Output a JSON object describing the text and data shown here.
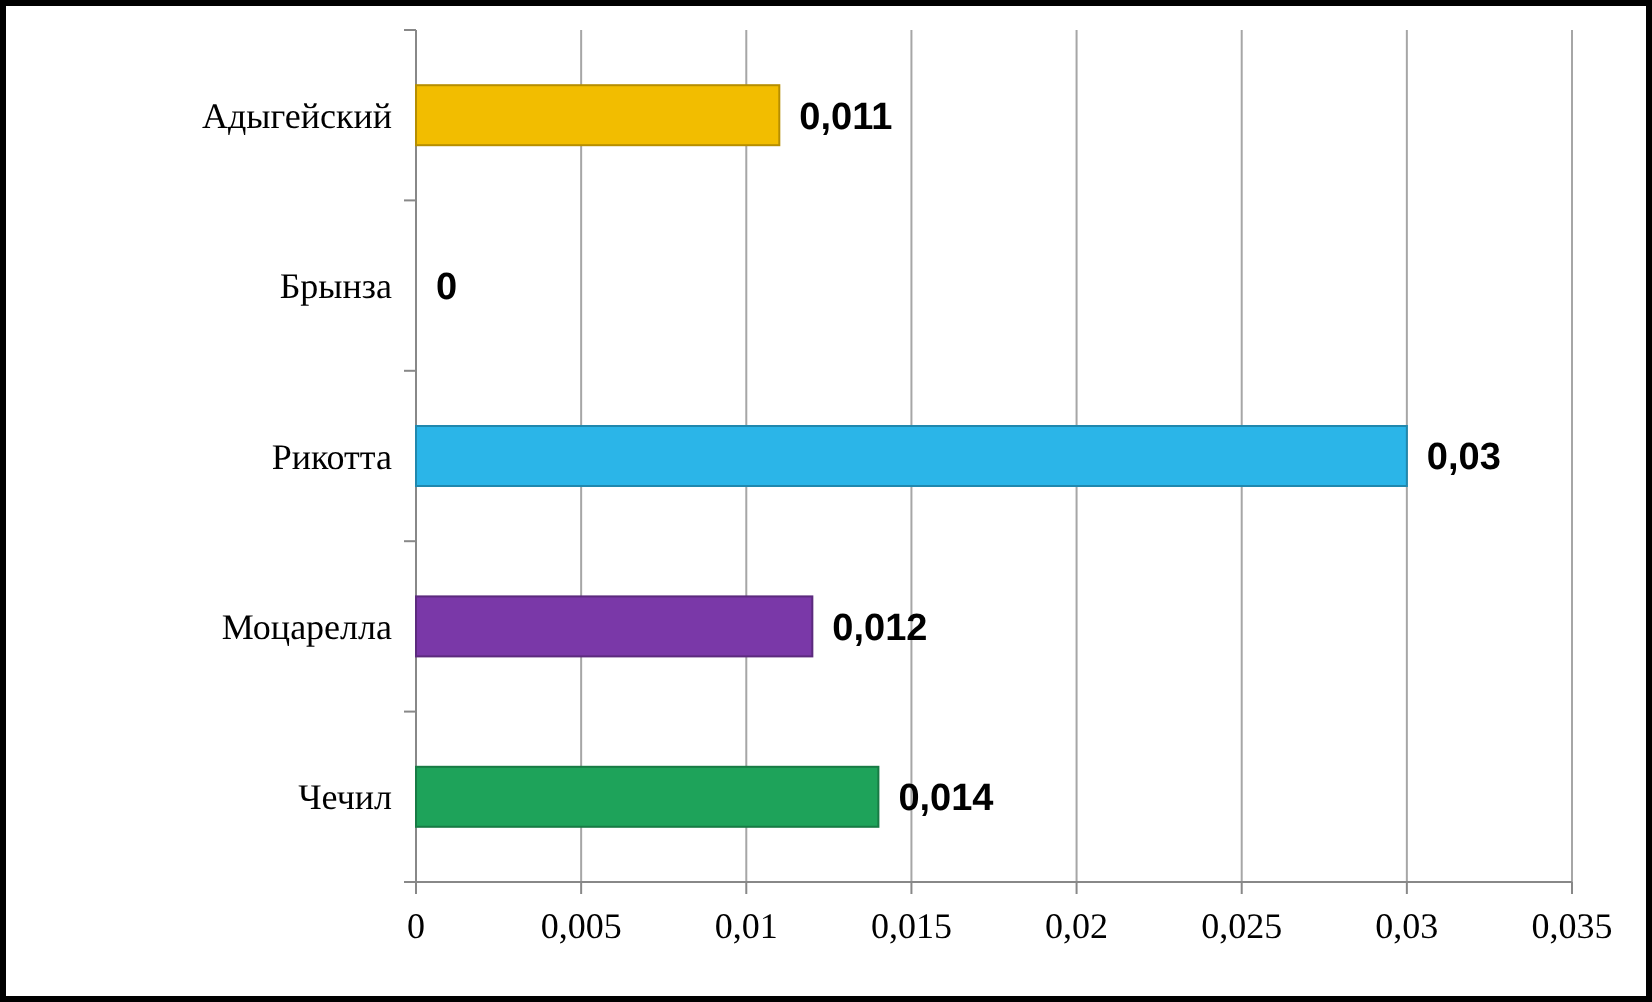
{
  "chart_data": {
    "type": "bar",
    "orientation": "horizontal",
    "categories": [
      "Адыгейский",
      "Брынза",
      "Рикотта",
      "Моцарелла",
      "Чечил"
    ],
    "values": [
      0.011,
      0,
      0.03,
      0.012,
      0.014
    ],
    "colors": [
      "#f2bd00",
      "#8fd400",
      "#2bb5e8",
      "#7a38a8",
      "#1ea35a"
    ],
    "value_labels": [
      "0,011",
      "0",
      "0,03",
      "0,012",
      "0,014"
    ],
    "xlim": [
      0,
      0.035
    ],
    "xticks": [
      0,
      {
        "value": 0.005,
        "label": "0,005"
      },
      {
        "value": 0.01,
        "label": "0,01"
      },
      {
        "value": 0.015,
        "label": "0,015"
      },
      {
        "value": 0.02,
        "label": "0,02"
      },
      {
        "value": 0.025,
        "label": "0,025"
      },
      {
        "value": 0.03,
        "label": "0,03"
      },
      {
        "value": 0.035,
        "label": "0,035"
      }
    ],
    "grid": "x"
  }
}
